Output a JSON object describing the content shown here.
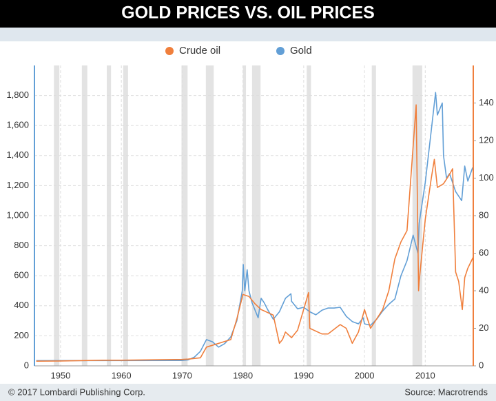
{
  "chart_data": {
    "type": "line",
    "title": "GOLD PRICES VS. OIL PRICES",
    "footer_left": "© 2017 Lombardi Publishing Corp.",
    "footer_right": "Source: Macrotrends",
    "xlim": [
      1945.7,
      2017.9
    ],
    "xticks": [
      1950,
      1960,
      1970,
      1980,
      1990,
      2000,
      2010
    ],
    "ylim": [
      0,
      2000
    ],
    "yticks": [
      0,
      200,
      400,
      600,
      800,
      {
        "value": 1000,
        "label": "1,000"
      },
      {
        "value": 1200,
        "label": "1,200"
      },
      {
        "value": 1400,
        "label": "1,400"
      },
      {
        "value": 1600,
        "label": "1,600"
      },
      {
        "value": 1800,
        "label": "1,800"
      }
    ],
    "y2lim": [
      0,
      160
    ],
    "y2ticks": [
      0,
      20,
      40,
      60,
      80,
      100,
      120,
      140
    ],
    "grid": true,
    "legend": "top",
    "recession_color": "#e3e3e3",
    "recessions": [
      [
        1948.9,
        1949.8
      ],
      [
        1953.5,
        1954.4
      ],
      [
        1957.6,
        1958.3
      ],
      [
        1960.3,
        1961.1
      ],
      [
        1969.9,
        1970.9
      ],
      [
        1973.9,
        1975.2
      ],
      [
        1980.0,
        1980.5
      ],
      [
        1981.5,
        1982.9
      ],
      [
        1990.5,
        1991.2
      ],
      [
        2001.2,
        2001.9
      ],
      [
        2007.9,
        2009.5
      ]
    ],
    "series": [
      {
        "name": "Crude oil",
        "color": "#f07f3c",
        "axis": "y2",
        "x": [
          1946,
          1950,
          1957,
          1960,
          1970,
          1971,
          1973,
          1974,
          1978,
          1979,
          1980,
          1981,
          1982,
          1983,
          1985,
          1986,
          1986.5,
          1987,
          1988,
          1989,
          1990.8,
          1991,
          1993,
          1994,
          1996,
          1997,
          1998,
          1999,
          2000,
          2001,
          2002,
          2003,
          2004,
          2005,
          2006,
          2007,
          2008.5,
          2008.9,
          2009,
          2010,
          2011,
          2011.5,
          2012,
          2013,
          2014,
          2014.5,
          2015,
          2015.5,
          2016.1,
          2016.5,
          2017,
          2017.9
        ],
        "values": [
          2.5,
          2.6,
          3.0,
          3.0,
          3.4,
          3.6,
          4.3,
          10,
          14,
          25,
          38,
          37,
          33,
          30,
          27,
          12,
          14,
          18,
          15,
          19,
          39,
          20,
          17,
          17,
          22,
          20,
          12,
          18,
          30,
          20,
          25,
          30,
          40,
          57,
          66,
          72,
          139,
          40,
          45,
          78,
          100,
          110,
          95,
          97,
          102,
          105,
          50,
          45,
          30,
          47,
          52,
          58
        ]
      },
      {
        "name": "Gold",
        "color": "#629fd6",
        "axis": "y",
        "x": [
          1946,
          1970,
          1971,
          1972,
          1973,
          1974,
          1975,
          1976,
          1977,
          1978,
          1979,
          1979.9,
          1980.05,
          1980.3,
          1980.7,
          1981,
          1981.5,
          1982.5,
          1983,
          1983.5,
          1984,
          1985,
          1986,
          1987,
          1987.9,
          1988,
          1989,
          1990,
          1991,
          1992,
          1993,
          1994,
          1995,
          1996,
          1997,
          1998,
          1999,
          1999.8,
          2000,
          2001,
          2002,
          2003,
          2004,
          2005,
          2006,
          2007,
          2008,
          2008.8,
          2009,
          2010,
          2011,
          2011.7,
          2012,
          2012.8,
          2013,
          2013.5,
          2014,
          2015,
          2016,
          2016.5,
          2017,
          2017.8
        ],
        "values": [
          35,
          36,
          40,
          58,
          97,
          175,
          160,
          125,
          148,
          193,
          300,
          500,
          675,
          500,
          640,
          500,
          420,
          320,
          450,
          420,
          380,
          310,
          360,
          450,
          480,
          430,
          380,
          390,
          360,
          340,
          370,
          385,
          385,
          390,
          330,
          295,
          280,
          320,
          280,
          270,
          310,
          365,
          410,
          445,
          600,
          700,
          870,
          750,
          950,
          1220,
          1570,
          1820,
          1670,
          1750,
          1400,
          1250,
          1280,
          1160,
          1100,
          1330,
          1230,
          1320
        ]
      }
    ]
  }
}
